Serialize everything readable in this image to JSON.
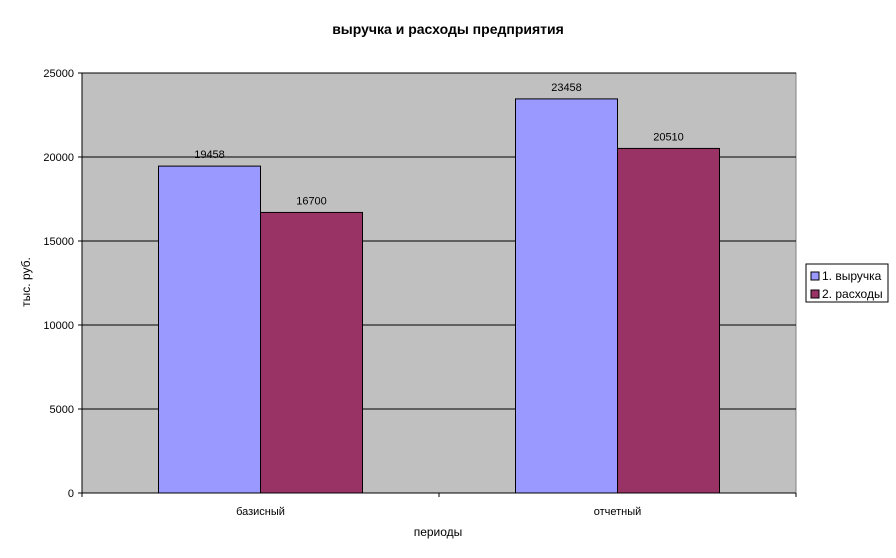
{
  "chart_data": {
    "type": "bar",
    "title": "выручка и расходы предприятия",
    "xlabel": "периоды",
    "ylabel": "тыс. руб.",
    "categories": [
      "базисный",
      "отчетный"
    ],
    "series": [
      {
        "name": "1. выручка",
        "values": [
          19458,
          23458
        ],
        "color": "#9999ff"
      },
      {
        "name": "2. расходы",
        "values": [
          16700,
          20510
        ],
        "color": "#993366"
      }
    ],
    "ylim": [
      0,
      25000
    ],
    "yticks": [
      0,
      5000,
      10000,
      15000,
      20000,
      25000
    ],
    "grid": true,
    "plot_background": "#c0c0c0",
    "legend_position": "right"
  }
}
